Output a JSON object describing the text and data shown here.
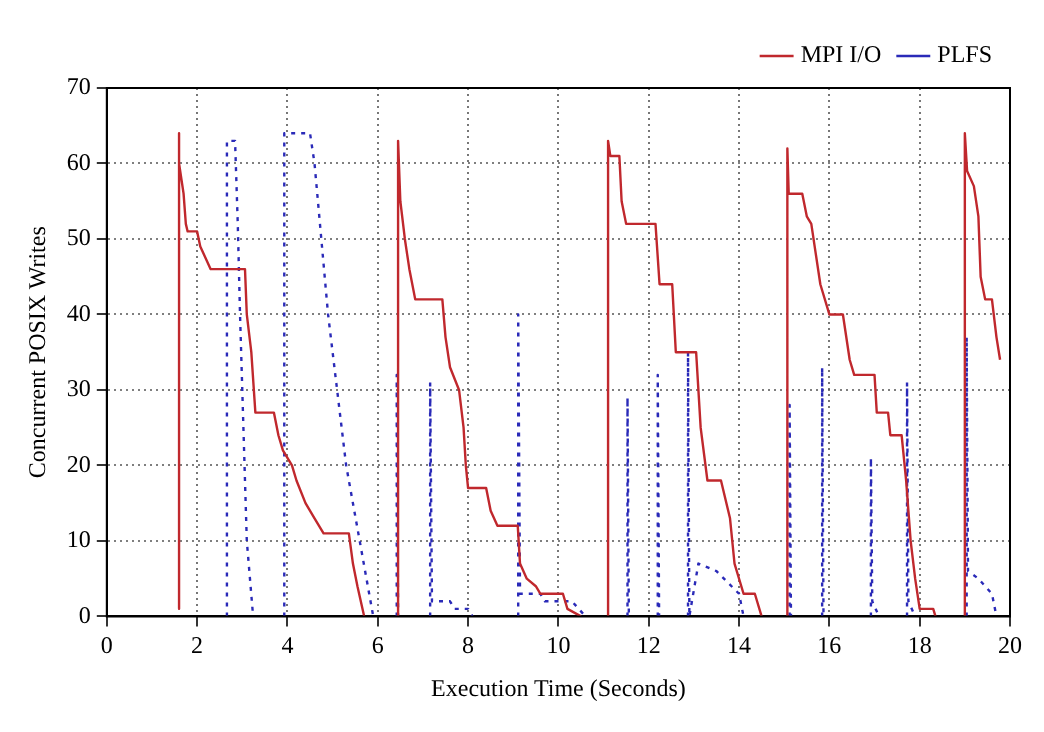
{
  "chart_data": {
    "type": "line",
    "xlabel": "Execution Time (Seconds)",
    "ylabel": "Concurrent POSIX Writes",
    "xlim": [
      0,
      20
    ],
    "xticks": [
      0,
      2,
      4,
      6,
      8,
      10,
      12,
      14,
      16,
      18,
      20
    ],
    "ylim": [
      0,
      70
    ],
    "yticks": [
      0,
      10,
      20,
      30,
      40,
      50,
      60,
      70
    ],
    "grid": true,
    "legend": "top right",
    "marker": "none",
    "series": [
      {
        "name": "MPI I/O",
        "color": "#c0282d",
        "line_style": "solid",
        "x": [
          1.58,
          1.58,
          1.62,
          1.7,
          1.75,
          1.79,
          2.0,
          2.07,
          2.3,
          3.06,
          3.1,
          3.2,
          3.29,
          3.7,
          3.8,
          3.9,
          4.1,
          4.2,
          4.4,
          4.6,
          4.8,
          5.36,
          5.45,
          5.55,
          5.7,
          6.0,
          6.45,
          6.45,
          6.5,
          6.6,
          6.7,
          6.83,
          7.43,
          7.5,
          7.6,
          7.8,
          7.9,
          7.95,
          8.0,
          8.4,
          8.5,
          8.65,
          9.1,
          9.15,
          9.3,
          9.5,
          9.6,
          10.1,
          10.2,
          10.5,
          10.8,
          11.1,
          11.1,
          11.15,
          11.35,
          11.4,
          11.5,
          12.15,
          12.24,
          12.52,
          12.6,
          13.05,
          13.15,
          13.3,
          13.6,
          13.8,
          13.9,
          14.1,
          14.35,
          14.5,
          14.8,
          15.07,
          15.07,
          15.1,
          15.4,
          15.5,
          15.6,
          15.7,
          15.8,
          16.0,
          16.3,
          16.45,
          16.55,
          17.0,
          17.05,
          17.3,
          17.35,
          17.6,
          17.7,
          17.8,
          17.9,
          18.0,
          18.3,
          18.35,
          18.7,
          19.0,
          19.0,
          19.05,
          19.2,
          19.3,
          19.35,
          19.45,
          19.6,
          19.7,
          19.78
        ],
        "values": [
          1,
          64,
          60,
          56,
          52,
          51,
          51,
          49,
          46,
          46,
          40,
          35,
          27,
          27,
          24,
          22,
          20,
          18,
          15,
          13,
          11,
          11,
          7,
          4,
          0,
          null,
          0,
          63,
          55,
          50,
          46,
          42,
          42,
          37,
          33,
          30,
          25,
          20,
          17,
          17,
          14,
          12,
          12,
          7,
          5,
          4,
          3,
          3,
          1,
          0,
          null,
          0,
          63,
          61,
          61,
          55,
          52,
          52,
          44,
          44,
          35,
          35,
          25,
          18,
          18,
          13,
          7,
          3,
          3,
          0,
          null,
          0,
          62,
          56,
          56,
          53,
          52,
          48,
          44,
          40,
          40,
          34,
          32,
          32,
          27,
          27,
          24,
          24,
          18,
          10,
          5,
          1,
          1,
          0,
          null,
          0,
          64,
          59,
          57,
          53,
          45,
          42,
          42,
          37,
          34
        ]
      },
      {
        "name": "PLFS",
        "color": "#2a2ab8",
        "line_style": "dotted",
        "x": [
          2.66,
          2.66,
          2.84,
          2.9,
          2.95,
          3.0,
          3.05,
          3.1,
          3.24,
          3.5,
          3.93,
          3.93,
          4.5,
          4.6,
          4.75,
          4.9,
          5.1,
          5.3,
          5.6,
          5.9,
          6.2,
          6.42,
          6.42,
          6.45,
          6.8,
          7.16,
          7.16,
          7.2,
          7.6,
          7.7,
          8.0,
          8.1,
          8.5,
          9.11,
          9.11,
          9.15,
          9.6,
          9.7,
          10.3,
          10.6,
          11.0,
          11.53,
          11.53,
          11.56,
          11.8,
          12.2,
          12.2,
          12.23,
          12.5,
          12.87,
          12.87,
          12.9,
          13.1,
          13.5,
          14.0,
          14.1,
          14.5,
          15.12,
          15.12,
          15.15,
          15.5,
          15.84,
          15.84,
          15.87,
          16.4,
          16.92,
          16.92,
          16.95,
          17.1,
          17.4,
          17.72,
          17.72,
          17.75,
          17.9,
          18.5,
          19.04,
          19.04,
          19.07,
          19.3,
          19.6,
          19.7
        ],
        "values": [
          0,
          63,
          63,
          52,
          40,
          30,
          20,
          10,
          0,
          null,
          0,
          64,
          64,
          60,
          50,
          40,
          30,
          20,
          10,
          0,
          null,
          0,
          32,
          0,
          null,
          0,
          31,
          2,
          2,
          1,
          1,
          0,
          null,
          0,
          40,
          3,
          3,
          2,
          2,
          0,
          null,
          0,
          29,
          0,
          null,
          0,
          32,
          0,
          null,
          0,
          35,
          0,
          7,
          6,
          3,
          0,
          null,
          0,
          28,
          0,
          null,
          0,
          33,
          0,
          null,
          0,
          21,
          2,
          0,
          null,
          0,
          31,
          2,
          0,
          null,
          0,
          37,
          6,
          5,
          3,
          0
        ]
      }
    ]
  }
}
